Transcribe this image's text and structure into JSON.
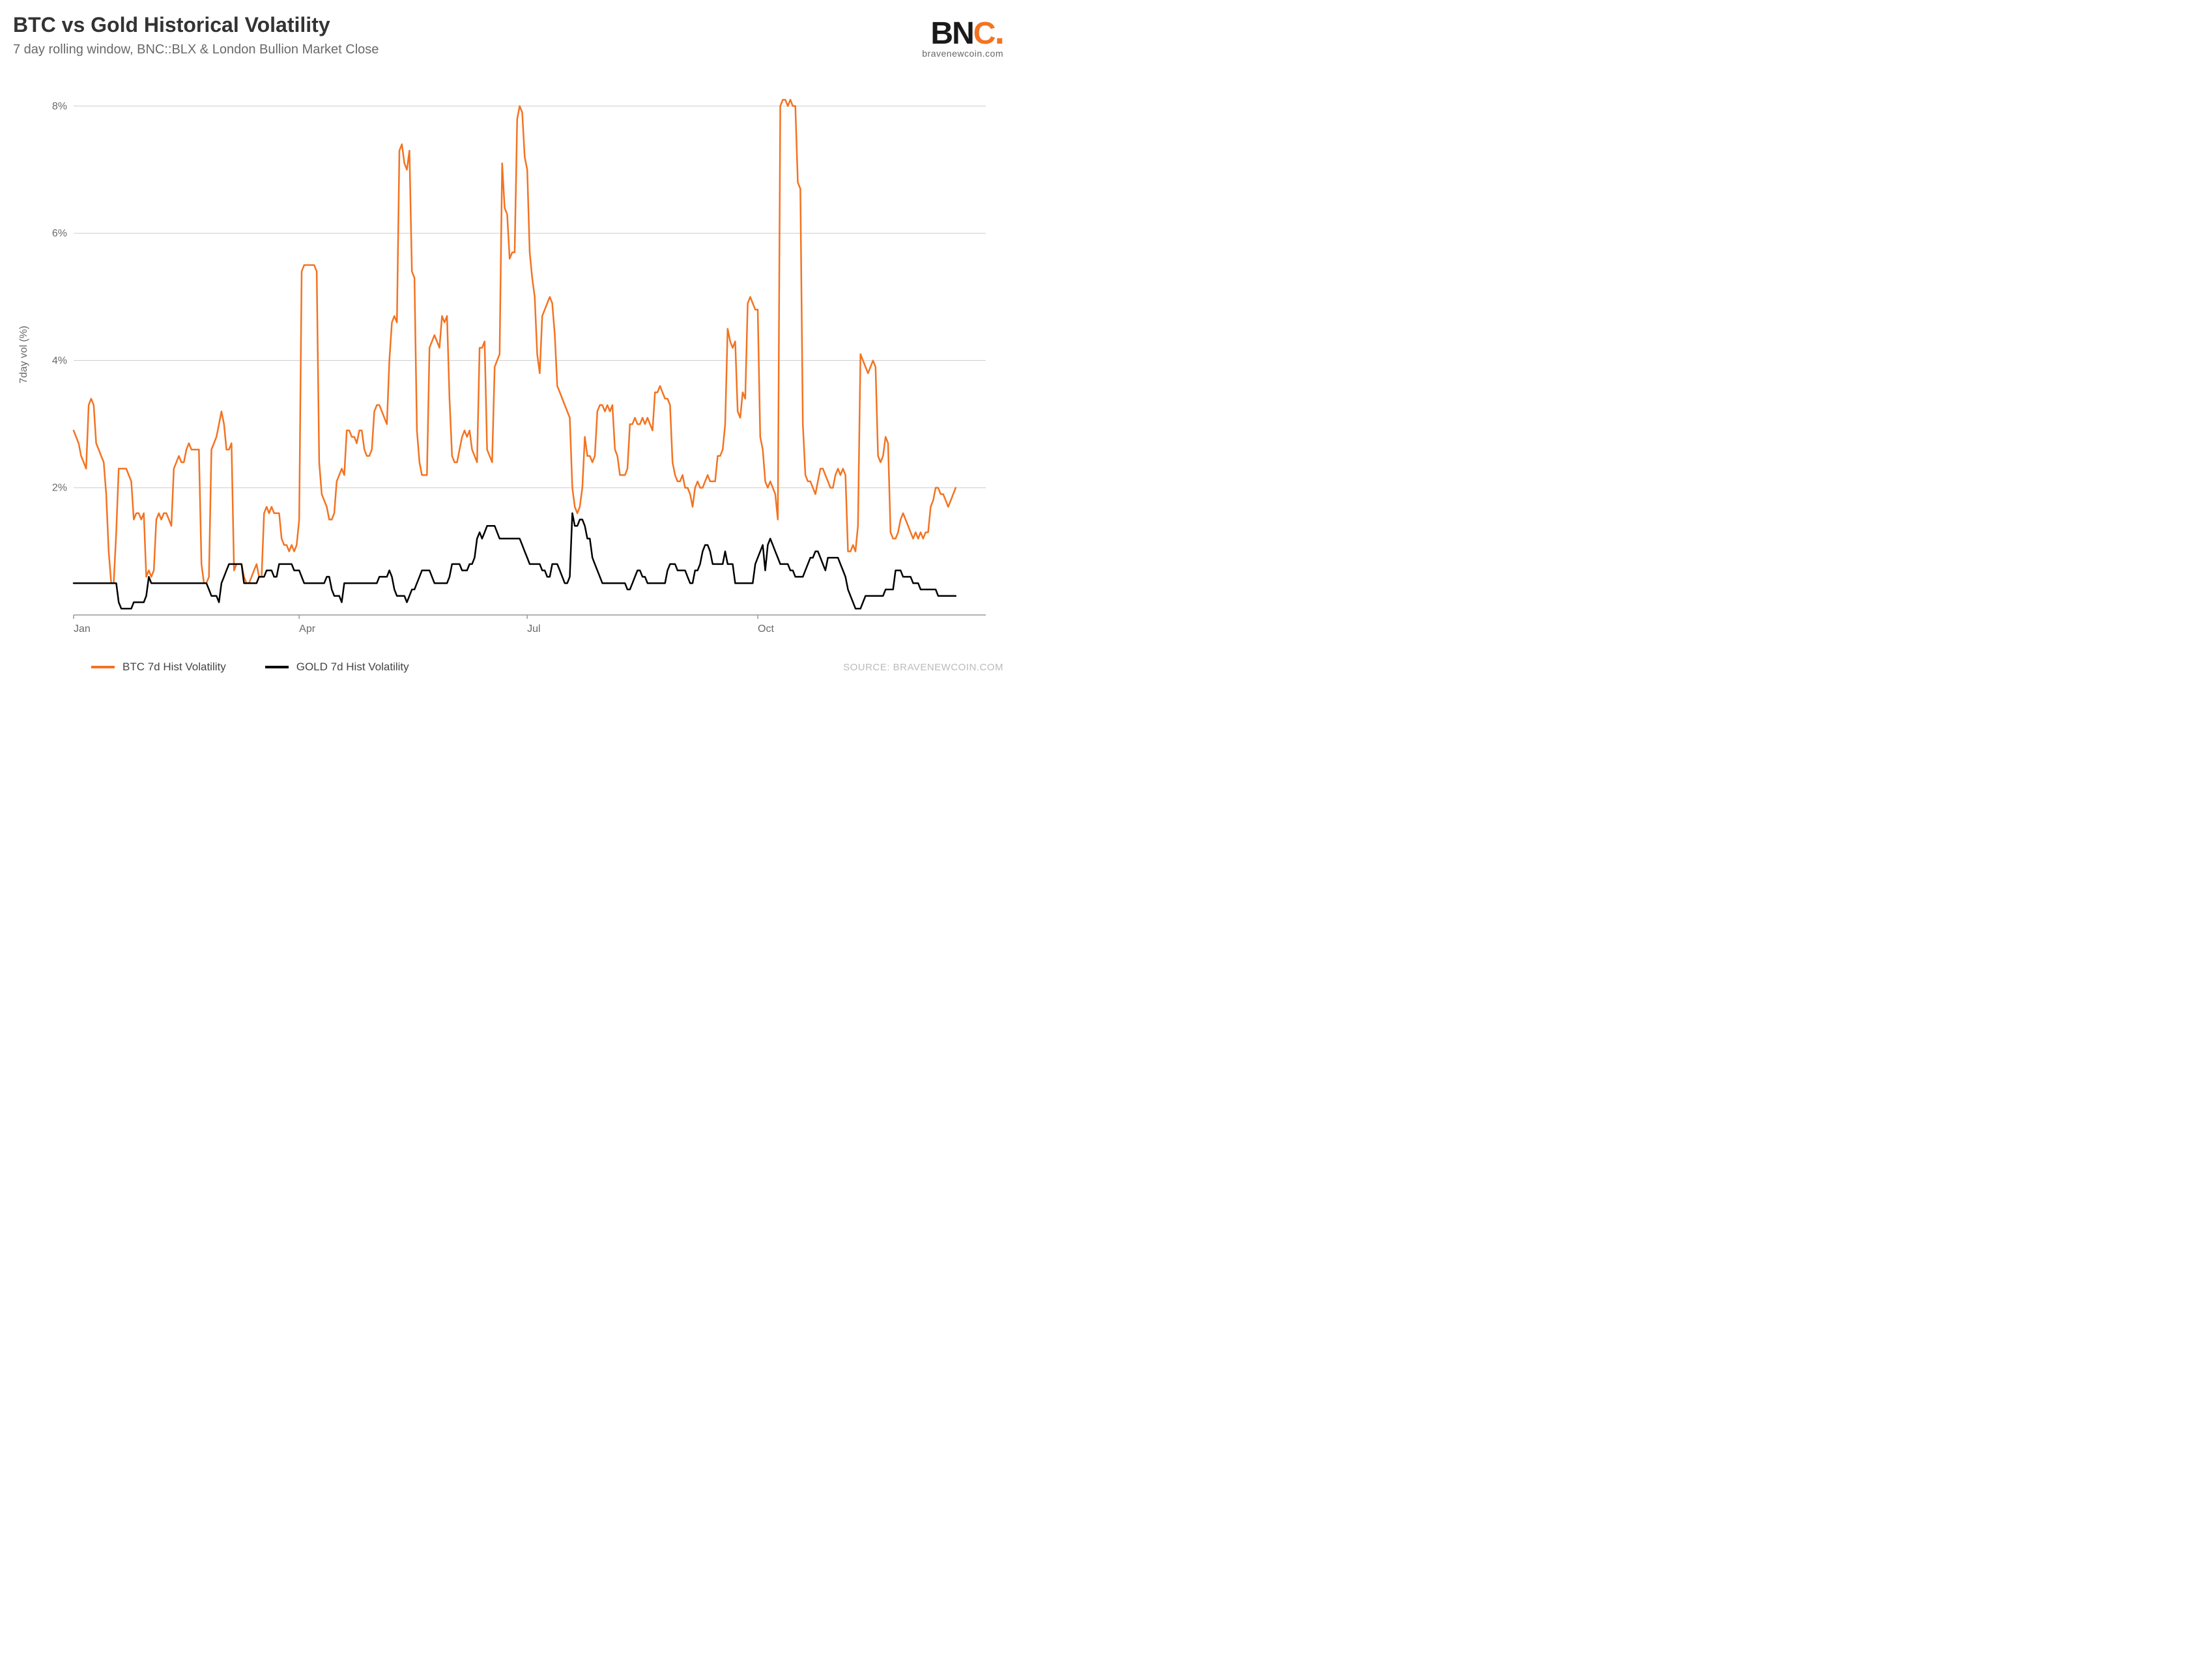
{
  "chart": {
    "type": "line",
    "title": "BTC vs Gold Historical Volatility",
    "subtitle": "7 day rolling window, BNC::BLX & London Bullion Market Close",
    "y_axis_title": "7day vol (%)",
    "source_label": "SOURCE: BRAVENEWCOIN.COM",
    "background_color": "#ffffff",
    "grid_color": "#cccccc",
    "axis_color": "#999999",
    "text_color": "#696969",
    "title_color": "#333333",
    "title_fontsize": 32,
    "subtitle_fontsize": 20,
    "tick_fontsize": 16,
    "line_width": 2.5,
    "ylim": [
      0,
      8.5
    ],
    "ytick_step": 2,
    "ytick_labels": [
      "2%",
      "4%",
      "6%",
      "8%"
    ],
    "ytick_values": [
      2,
      4,
      6,
      8
    ],
    "x_domain_days": 365,
    "xtick_labels": [
      "Jan",
      "Apr",
      "Jul",
      "Oct"
    ],
    "xtick_days": [
      0,
      90,
      181,
      273
    ],
    "logo": {
      "text_b": "B",
      "text_n": "N",
      "text_c": "C",
      "text_dot": ".",
      "sub": "bravenewcoin.com",
      "color_dark": "#1a1a1a",
      "color_accent": "#f37321"
    },
    "legend": [
      {
        "label": "BTC 7d Hist Volatility",
        "color": "#f37321"
      },
      {
        "label": "GOLD 7d Hist Volatility",
        "color": "#000000"
      }
    ],
    "series": [
      {
        "name": "BTC 7d Hist Volatility",
        "color": "#f37321",
        "data": [
          2.9,
          2.8,
          2.7,
          2.5,
          2.4,
          2.3,
          3.3,
          3.4,
          3.3,
          2.7,
          2.6,
          2.5,
          2.4,
          1.9,
          1.0,
          0.5,
          0.5,
          1.3,
          2.3,
          2.3,
          2.3,
          2.3,
          2.2,
          2.1,
          1.5,
          1.6,
          1.6,
          1.5,
          1.6,
          0.6,
          0.7,
          0.6,
          0.7,
          1.5,
          1.6,
          1.5,
          1.6,
          1.6,
          1.5,
          1.4,
          2.3,
          2.4,
          2.5,
          2.4,
          2.4,
          2.6,
          2.7,
          2.6,
          2.6,
          2.6,
          2.6,
          0.8,
          0.5,
          0.5,
          0.6,
          2.6,
          2.7,
          2.8,
          3.0,
          3.2,
          3.0,
          2.6,
          2.6,
          2.7,
          0.7,
          0.8,
          0.8,
          0.8,
          0.6,
          0.5,
          0.5,
          0.6,
          0.7,
          0.8,
          0.6,
          0.6,
          1.6,
          1.7,
          1.6,
          1.7,
          1.6,
          1.6,
          1.6,
          1.2,
          1.1,
          1.1,
          1.0,
          1.1,
          1.0,
          1.1,
          1.5,
          5.4,
          5.5,
          5.5,
          5.5,
          5.5,
          5.5,
          5.4,
          2.4,
          1.9,
          1.8,
          1.7,
          1.5,
          1.5,
          1.6,
          2.1,
          2.2,
          2.3,
          2.2,
          2.9,
          2.9,
          2.8,
          2.8,
          2.7,
          2.9,
          2.9,
          2.6,
          2.5,
          2.5,
          2.6,
          3.2,
          3.3,
          3.3,
          3.2,
          3.1,
          3.0,
          4.0,
          4.6,
          4.7,
          4.6,
          7.3,
          7.4,
          7.1,
          7.0,
          7.3,
          5.4,
          5.3,
          2.9,
          2.4,
          2.2,
          2.2,
          2.2,
          4.2,
          4.3,
          4.4,
          4.3,
          4.2,
          4.7,
          4.6,
          4.7,
          3.4,
          2.5,
          2.4,
          2.4,
          2.6,
          2.8,
          2.9,
          2.8,
          2.9,
          2.6,
          2.5,
          2.4,
          4.2,
          4.2,
          4.3,
          2.6,
          2.5,
          2.4,
          3.9,
          4.0,
          4.1,
          7.1,
          6.4,
          6.3,
          5.6,
          5.7,
          5.7,
          7.8,
          8.0,
          7.9,
          7.2,
          7.0,
          5.7,
          5.3,
          5.0,
          4.1,
          3.8,
          4.7,
          4.8,
          4.9,
          5.0,
          4.9,
          4.4,
          3.6,
          3.5,
          3.4,
          3.3,
          3.2,
          3.1,
          2.0,
          1.7,
          1.6,
          1.7,
          2.0,
          2.8,
          2.5,
          2.5,
          2.4,
          2.5,
          3.2,
          3.3,
          3.3,
          3.2,
          3.3,
          3.2,
          3.3,
          2.6,
          2.5,
          2.2,
          2.2,
          2.2,
          2.3,
          3.0,
          3.0,
          3.1,
          3.0,
          3.0,
          3.1,
          3.0,
          3.1,
          3.0,
          2.9,
          3.5,
          3.5,
          3.6,
          3.5,
          3.4,
          3.4,
          3.3,
          2.4,
          2.2,
          2.1,
          2.1,
          2.2,
          2.0,
          2.0,
          1.9,
          1.7,
          2.0,
          2.1,
          2.0,
          2.0,
          2.1,
          2.2,
          2.1,
          2.1,
          2.1,
          2.5,
          2.5,
          2.6,
          3.0,
          4.5,
          4.3,
          4.2,
          4.3,
          3.2,
          3.1,
          3.5,
          3.4,
          4.9,
          5.0,
          4.9,
          4.8,
          4.8,
          2.8,
          2.6,
          2.1,
          2.0,
          2.1,
          2.0,
          1.9,
          1.5,
          8.0,
          8.1,
          8.1,
          8.0,
          8.1,
          8.0,
          8.0,
          6.8,
          6.7,
          3.0,
          2.2,
          2.1,
          2.1,
          2.0,
          1.9,
          2.1,
          2.3,
          2.3,
          2.2,
          2.1,
          2.0,
          2.0,
          2.2,
          2.3,
          2.2,
          2.3,
          2.2,
          1.0,
          1.0,
          1.1,
          1.0,
          1.4,
          4.1,
          4.0,
          3.9,
          3.8,
          3.9,
          4.0,
          3.9,
          2.5,
          2.4,
          2.5,
          2.8,
          2.7,
          1.3,
          1.2,
          1.2,
          1.3,
          1.5,
          1.6,
          1.5,
          1.4,
          1.3,
          1.2,
          1.3,
          1.2,
          1.3,
          1.2,
          1.3,
          1.3,
          1.7,
          1.8,
          2.0,
          2.0,
          1.9,
          1.9,
          1.8,
          1.7,
          1.8,
          1.9,
          2.0
        ]
      },
      {
        "name": "GOLD 7d Hist Volatility",
        "color": "#000000",
        "data": [
          0.5,
          0.5,
          0.5,
          0.5,
          0.5,
          0.5,
          0.5,
          0.5,
          0.5,
          0.5,
          0.5,
          0.5,
          0.5,
          0.5,
          0.5,
          0.5,
          0.5,
          0.5,
          0.2,
          0.1,
          0.1,
          0.1,
          0.1,
          0.1,
          0.2,
          0.2,
          0.2,
          0.2,
          0.2,
          0.3,
          0.6,
          0.5,
          0.5,
          0.5,
          0.5,
          0.5,
          0.5,
          0.5,
          0.5,
          0.5,
          0.5,
          0.5,
          0.5,
          0.5,
          0.5,
          0.5,
          0.5,
          0.5,
          0.5,
          0.5,
          0.5,
          0.5,
          0.5,
          0.5,
          0.4,
          0.3,
          0.3,
          0.3,
          0.2,
          0.5,
          0.6,
          0.7,
          0.8,
          0.8,
          0.8,
          0.8,
          0.8,
          0.8,
          0.5,
          0.5,
          0.5,
          0.5,
          0.5,
          0.5,
          0.6,
          0.6,
          0.6,
          0.7,
          0.7,
          0.7,
          0.6,
          0.6,
          0.8,
          0.8,
          0.8,
          0.8,
          0.8,
          0.8,
          0.7,
          0.7,
          0.7,
          0.6,
          0.5,
          0.5,
          0.5,
          0.5,
          0.5,
          0.5,
          0.5,
          0.5,
          0.5,
          0.6,
          0.6,
          0.4,
          0.3,
          0.3,
          0.3,
          0.2,
          0.5,
          0.5,
          0.5,
          0.5,
          0.5,
          0.5,
          0.5,
          0.5,
          0.5,
          0.5,
          0.5,
          0.5,
          0.5,
          0.5,
          0.6,
          0.6,
          0.6,
          0.6,
          0.7,
          0.6,
          0.4,
          0.3,
          0.3,
          0.3,
          0.3,
          0.2,
          0.3,
          0.4,
          0.4,
          0.5,
          0.6,
          0.7,
          0.7,
          0.7,
          0.7,
          0.6,
          0.5,
          0.5,
          0.5,
          0.5,
          0.5,
          0.5,
          0.6,
          0.8,
          0.8,
          0.8,
          0.8,
          0.7,
          0.7,
          0.7,
          0.8,
          0.8,
          0.9,
          1.2,
          1.3,
          1.2,
          1.3,
          1.4,
          1.4,
          1.4,
          1.4,
          1.3,
          1.2,
          1.2,
          1.2,
          1.2,
          1.2,
          1.2,
          1.2,
          1.2,
          1.2,
          1.1,
          1.0,
          0.9,
          0.8,
          0.8,
          0.8,
          0.8,
          0.8,
          0.7,
          0.7,
          0.6,
          0.6,
          0.8,
          0.8,
          0.8,
          0.7,
          0.6,
          0.5,
          0.5,
          0.6,
          1.6,
          1.4,
          1.4,
          1.5,
          1.5,
          1.4,
          1.2,
          1.2,
          0.9,
          0.8,
          0.7,
          0.6,
          0.5,
          0.5,
          0.5,
          0.5,
          0.5,
          0.5,
          0.5,
          0.5,
          0.5,
          0.5,
          0.4,
          0.4,
          0.5,
          0.6,
          0.7,
          0.7,
          0.6,
          0.6,
          0.5,
          0.5,
          0.5,
          0.5,
          0.5,
          0.5,
          0.5,
          0.5,
          0.7,
          0.8,
          0.8,
          0.8,
          0.7,
          0.7,
          0.7,
          0.7,
          0.6,
          0.5,
          0.5,
          0.7,
          0.7,
          0.8,
          1.0,
          1.1,
          1.1,
          1.0,
          0.8,
          0.8,
          0.8,
          0.8,
          0.8,
          1.0,
          0.8,
          0.8,
          0.8,
          0.5,
          0.5,
          0.5,
          0.5,
          0.5,
          0.5,
          0.5,
          0.5,
          0.8,
          0.9,
          1.0,
          1.1,
          0.7,
          1.1,
          1.2,
          1.1,
          1.0,
          0.9,
          0.8,
          0.8,
          0.8,
          0.8,
          0.7,
          0.7,
          0.6,
          0.6,
          0.6,
          0.6,
          0.7,
          0.8,
          0.9,
          0.9,
          1.0,
          1.0,
          0.9,
          0.8,
          0.7,
          0.9,
          0.9,
          0.9,
          0.9,
          0.9,
          0.8,
          0.7,
          0.6,
          0.4,
          0.3,
          0.2,
          0.1,
          0.1,
          0.1,
          0.2,
          0.3,
          0.3,
          0.3,
          0.3,
          0.3,
          0.3,
          0.3,
          0.3,
          0.4,
          0.4,
          0.4,
          0.4,
          0.7,
          0.7,
          0.7,
          0.6,
          0.6,
          0.6,
          0.6,
          0.5,
          0.5,
          0.5,
          0.4,
          0.4,
          0.4,
          0.4,
          0.4,
          0.4,
          0.4,
          0.3,
          0.3,
          0.3,
          0.3,
          0.3,
          0.3,
          0.3,
          0.3
        ]
      }
    ]
  }
}
